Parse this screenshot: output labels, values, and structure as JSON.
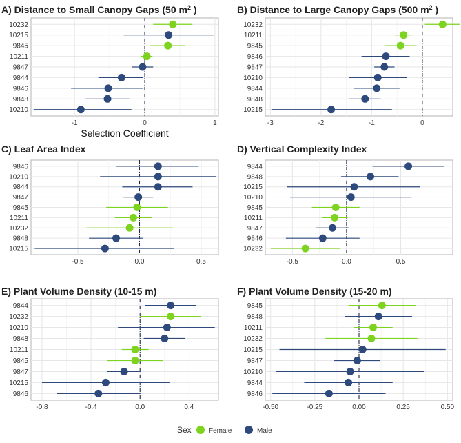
{
  "colors": {
    "Female": "#7ed321",
    "Male": "#2e4a7d",
    "grid": "#e6e6e6",
    "panel_border": "#b3b3b3",
    "ref_line": "#1e2a4a",
    "text": "#333333"
  },
  "legend": {
    "title": "Sex",
    "items": [
      {
        "label": "Female",
        "series": "Female"
      },
      {
        "label": "Male",
        "series": "Male"
      }
    ]
  },
  "chart_data": [
    {
      "type": "scatter",
      "subtype": "forest",
      "title": "A) Distance to Small Canopy Gaps (50 m",
      "title_sup": "2",
      "title_end": ")",
      "xlabel": "Selection Coefficient",
      "xlim": [
        -1.62,
        1.05
      ],
      "xticks": [
        {
          "v": -1,
          "label": "-1"
        },
        {
          "v": 0,
          "label": "0"
        },
        {
          "v": 1,
          "label": "1"
        }
      ],
      "rows": [
        {
          "id": "10232",
          "sex": "Female",
          "est": 0.4,
          "lo": 0.12,
          "hi": 0.68
        },
        {
          "id": "10215",
          "sex": "Male",
          "est": 0.34,
          "lo": -0.3,
          "hi": 0.98
        },
        {
          "id": "9845",
          "sex": "Female",
          "est": 0.33,
          "lo": 0.08,
          "hi": 0.58
        },
        {
          "id": "10211",
          "sex": "Female",
          "est": 0.03,
          "lo": -0.05,
          "hi": 0.11
        },
        {
          "id": "9847",
          "sex": "Male",
          "est": -0.03,
          "lo": -0.18,
          "hi": 0.12
        },
        {
          "id": "9844",
          "sex": "Male",
          "est": -0.33,
          "lo": -0.66,
          "hi": -0.02
        },
        {
          "id": "9846",
          "sex": "Male",
          "est": -0.52,
          "lo": -1.05,
          "hi": -0.02
        },
        {
          "id": "9848",
          "sex": "Male",
          "est": -0.53,
          "lo": -0.84,
          "hi": -0.22
        },
        {
          "id": "10210",
          "sex": "Male",
          "est": -0.91,
          "lo": -1.58,
          "hi": -0.19
        }
      ]
    },
    {
      "type": "scatter",
      "subtype": "forest",
      "title": "B) Distance to Large Canopy Gaps (500 m",
      "title_sup": "2",
      "title_end": ")",
      "xlabel": "",
      "xlim": [
        -3.1,
        0.6
      ],
      "xticks": [
        {
          "v": -3,
          "label": "-3"
        },
        {
          "v": -2,
          "label": "-2"
        },
        {
          "v": -1,
          "label": "-1"
        },
        {
          "v": 0,
          "label": "0"
        }
      ],
      "rows": [
        {
          "id": "10232",
          "sex": "Female",
          "est": 0.4,
          "lo": 0.05,
          "hi": 0.75
        },
        {
          "id": "10211",
          "sex": "Female",
          "est": -0.37,
          "lo": -0.55,
          "hi": -0.2
        },
        {
          "id": "9845",
          "sex": "Female",
          "est": -0.43,
          "lo": -0.75,
          "hi": -0.12
        },
        {
          "id": "9846",
          "sex": "Male",
          "est": -0.72,
          "lo": -1.2,
          "hi": -0.25
        },
        {
          "id": "9847",
          "sex": "Male",
          "est": -0.75,
          "lo": -0.95,
          "hi": -0.55
        },
        {
          "id": "10210",
          "sex": "Male",
          "est": -0.88,
          "lo": -1.45,
          "hi": -0.3
        },
        {
          "id": "9844",
          "sex": "Male",
          "est": -0.9,
          "lo": -1.35,
          "hi": -0.45
        },
        {
          "id": "9848",
          "sex": "Male",
          "est": -1.13,
          "lo": -1.45,
          "hi": -0.82
        },
        {
          "id": "10215",
          "sex": "Male",
          "est": -1.8,
          "lo": -2.98,
          "hi": -0.6
        }
      ]
    },
    {
      "type": "scatter",
      "subtype": "forest",
      "title": "C) Leaf Area Index",
      "title_sup": "",
      "title_end": "",
      "xlabel": "",
      "xlim": [
        -0.88,
        0.64
      ],
      "xticks": [
        {
          "v": -0.5,
          "label": "-0.5"
        },
        {
          "v": 0,
          "label": "0.0"
        },
        {
          "v": 0.5,
          "label": "0.5"
        }
      ],
      "rows": [
        {
          "id": "9846",
          "sex": "Male",
          "est": 0.15,
          "lo": -0.19,
          "hi": 0.48
        },
        {
          "id": "10210",
          "sex": "Male",
          "est": 0.15,
          "lo": -0.32,
          "hi": 0.62
        },
        {
          "id": "9844",
          "sex": "Male",
          "est": 0.15,
          "lo": -0.14,
          "hi": 0.43
        },
        {
          "id": "9847",
          "sex": "Male",
          "est": -0.01,
          "lo": -0.13,
          "hi": 0.11
        },
        {
          "id": "9845",
          "sex": "Female",
          "est": -0.02,
          "lo": -0.27,
          "hi": 0.23
        },
        {
          "id": "10211",
          "sex": "Female",
          "est": -0.05,
          "lo": -0.2,
          "hi": 0.1
        },
        {
          "id": "10232",
          "sex": "Female",
          "est": -0.08,
          "lo": -0.43,
          "hi": 0.27
        },
        {
          "id": "9848",
          "sex": "Male",
          "est": -0.19,
          "lo": -0.41,
          "hi": 0.03
        },
        {
          "id": "10215",
          "sex": "Male",
          "est": -0.28,
          "lo": -0.85,
          "hi": 0.28
        }
      ]
    },
    {
      "type": "scatter",
      "subtype": "forest",
      "title": "D) Vertical Complexity Index",
      "title_sup": "",
      "title_end": "",
      "xlabel": "",
      "xlim": [
        -0.75,
        0.98
      ],
      "xticks": [
        {
          "v": -0.5,
          "label": "-0.5"
        },
        {
          "v": 0,
          "label": "0.0"
        },
        {
          "v": 0.5,
          "label": "0.5"
        }
      ],
      "rows": [
        {
          "id": "9844",
          "sex": "Male",
          "est": 0.57,
          "lo": 0.24,
          "hi": 0.9
        },
        {
          "id": "9848",
          "sex": "Male",
          "est": 0.22,
          "lo": -0.05,
          "hi": 0.48
        },
        {
          "id": "10215",
          "sex": "Male",
          "est": 0.07,
          "lo": -0.55,
          "hi": 0.68
        },
        {
          "id": "10210",
          "sex": "Male",
          "est": 0.04,
          "lo": -0.52,
          "hi": 0.6
        },
        {
          "id": "9845",
          "sex": "Female",
          "est": -0.1,
          "lo": -0.32,
          "hi": 0.12
        },
        {
          "id": "10211",
          "sex": "Female",
          "est": -0.11,
          "lo": -0.23,
          "hi": 0.01
        },
        {
          "id": "9847",
          "sex": "Male",
          "est": -0.13,
          "lo": -0.28,
          "hi": 0.02
        },
        {
          "id": "9846",
          "sex": "Male",
          "est": -0.22,
          "lo": -0.56,
          "hi": 0.12
        },
        {
          "id": "10232",
          "sex": "Female",
          "est": -0.38,
          "lo": -0.7,
          "hi": -0.06
        }
      ]
    },
    {
      "type": "scatter",
      "subtype": "forest",
      "title": "E) Plant Volume Density (10-15 m)",
      "title_sup": "",
      "title_end": "",
      "xlabel": "",
      "xlim": [
        -0.89,
        0.64
      ],
      "xticks": [
        {
          "v": -0.8,
          "label": "-0.8"
        },
        {
          "v": -0.4,
          "label": "-0.4"
        },
        {
          "v": 0,
          "label": "0.0"
        },
        {
          "v": 0.4,
          "label": "0.4"
        }
      ],
      "rows": [
        {
          "id": "9844",
          "sex": "Male",
          "est": 0.25,
          "lo": 0.04,
          "hi": 0.46
        },
        {
          "id": "10232",
          "sex": "Female",
          "est": 0.25,
          "lo": 0.0,
          "hi": 0.5
        },
        {
          "id": "10210",
          "sex": "Male",
          "est": 0.22,
          "lo": -0.18,
          "hi": 0.61
        },
        {
          "id": "9848",
          "sex": "Male",
          "est": 0.2,
          "lo": 0.03,
          "hi": 0.37
        },
        {
          "id": "10211",
          "sex": "Female",
          "est": -0.04,
          "lo": -0.15,
          "hi": 0.07
        },
        {
          "id": "9845",
          "sex": "Female",
          "est": -0.04,
          "lo": -0.27,
          "hi": 0.19
        },
        {
          "id": "9847",
          "sex": "Male",
          "est": -0.13,
          "lo": -0.27,
          "hi": 0.01
        },
        {
          "id": "10215",
          "sex": "Male",
          "est": -0.28,
          "lo": -0.8,
          "hi": 0.24
        },
        {
          "id": "9846",
          "sex": "Male",
          "est": -0.34,
          "lo": -0.68,
          "hi": 0.0
        }
      ]
    },
    {
      "type": "scatter",
      "subtype": "forest",
      "title": "F) Plant Volume Density (15-20 m)",
      "title_sup": "",
      "title_end": "",
      "xlabel": "",
      "xlim": [
        -0.53,
        0.53
      ],
      "xticks": [
        {
          "v": -0.5,
          "label": "-0.50"
        },
        {
          "v": -0.25,
          "label": "-0.25"
        },
        {
          "v": 0,
          "label": "0.00"
        },
        {
          "v": 0.25,
          "label": "0.25"
        },
        {
          "v": 0.5,
          "label": "0.50"
        }
      ],
      "rows": [
        {
          "id": "9845",
          "sex": "Female",
          "est": 0.13,
          "lo": -0.06,
          "hi": 0.32
        },
        {
          "id": "9848",
          "sex": "Male",
          "est": 0.11,
          "lo": -0.08,
          "hi": 0.3
        },
        {
          "id": "10211",
          "sex": "Female",
          "est": 0.08,
          "lo": -0.03,
          "hi": 0.19
        },
        {
          "id": "10232",
          "sex": "Female",
          "est": 0.07,
          "lo": -0.19,
          "hi": 0.33
        },
        {
          "id": "10215",
          "sex": "Male",
          "est": 0.02,
          "lo": -0.45,
          "hi": 0.49
        },
        {
          "id": "9847",
          "sex": "Male",
          "est": -0.01,
          "lo": -0.14,
          "hi": 0.12
        },
        {
          "id": "10210",
          "sex": "Male",
          "est": -0.05,
          "lo": -0.47,
          "hi": 0.37
        },
        {
          "id": "9844",
          "sex": "Male",
          "est": -0.06,
          "lo": -0.31,
          "hi": 0.19
        },
        {
          "id": "9846",
          "sex": "Male",
          "est": -0.17,
          "lo": -0.49,
          "hi": 0.15
        }
      ]
    }
  ]
}
